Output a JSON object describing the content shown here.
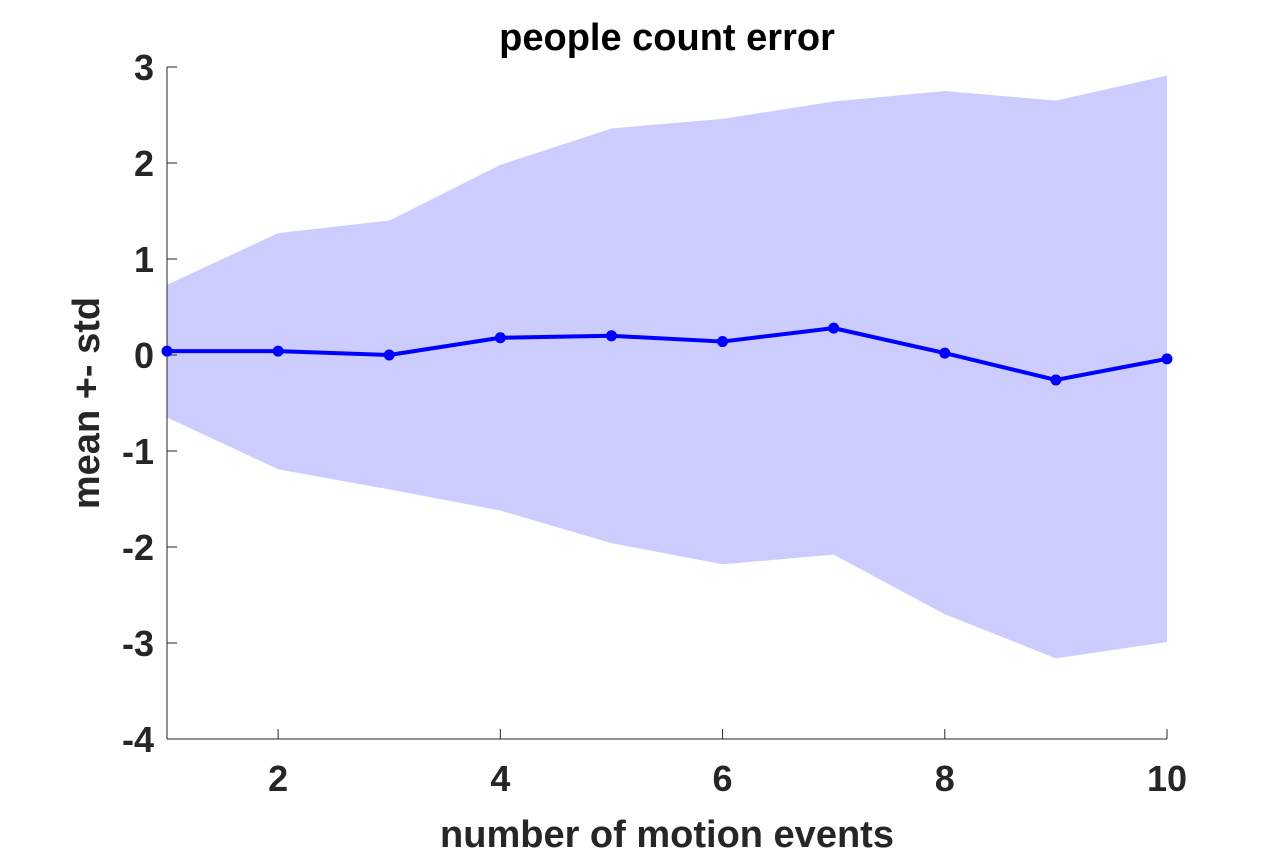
{
  "chart_data": {
    "type": "area",
    "title": "people count error",
    "xlabel": "number of motion events",
    "ylabel": "mean +- std",
    "xlim": [
      1,
      10
    ],
    "ylim": [
      -4,
      3
    ],
    "xticks": [
      2,
      4,
      6,
      8,
      10
    ],
    "xtick_labels": [
      "2",
      "4",
      "6",
      "8",
      "10"
    ],
    "yticks": [
      -4,
      -3,
      -2,
      -1,
      0,
      1,
      2,
      3
    ],
    "ytick_labels": [
      "-4",
      "-3",
      "-2",
      "-1",
      "0",
      "1",
      "2",
      "3"
    ],
    "grid": false,
    "x": [
      1,
      2,
      3,
      4,
      5,
      6,
      7,
      8,
      9,
      10
    ],
    "series": [
      {
        "values": [
          0.04,
          0.04,
          0.0,
          0.18,
          0.2,
          0.14,
          0.28,
          0.02,
          -0.26,
          -0.04
        ],
        "upper": [
          0.73,
          1.27,
          1.4,
          1.98,
          2.36,
          2.46,
          2.64,
          2.75,
          2.65,
          2.91
        ],
        "lower": [
          -0.65,
          -1.19,
          -1.4,
          -1.62,
          -1.96,
          -2.18,
          -2.08,
          -2.7,
          -3.16,
          -2.99
        ],
        "color": "#0000ff",
        "band_color": "#ccccff"
      }
    ]
  }
}
